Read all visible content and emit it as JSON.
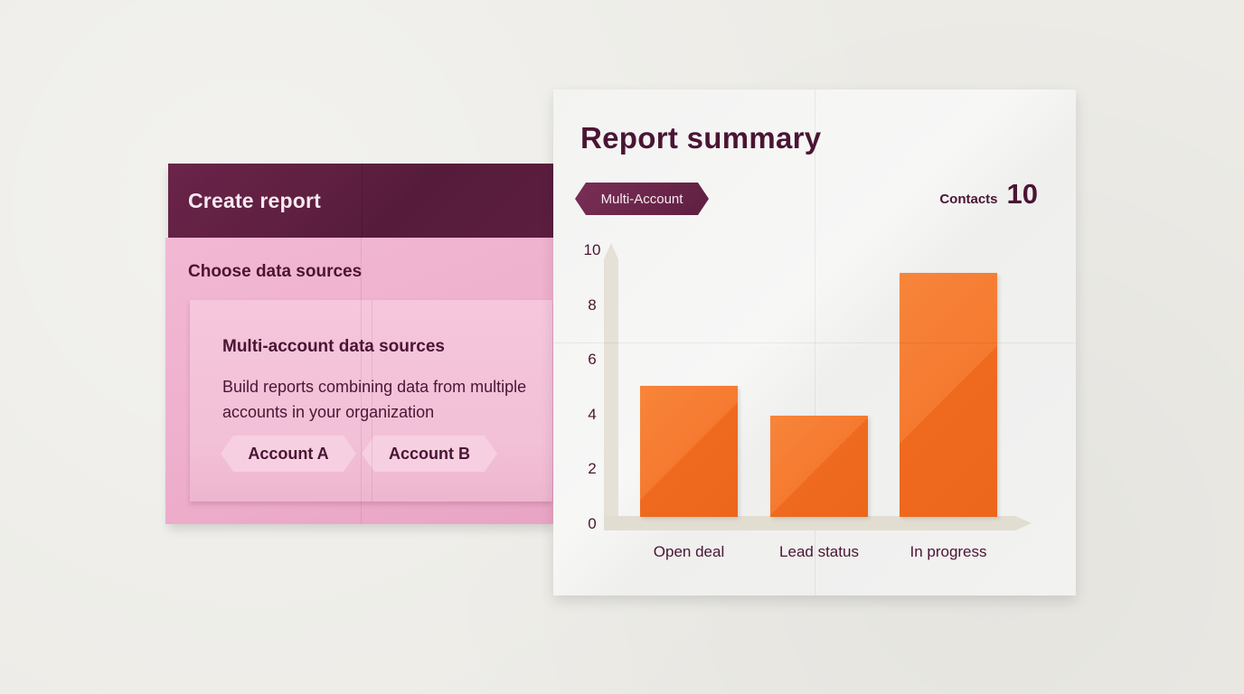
{
  "create_report": {
    "title": "Create report",
    "section_title": "Choose data sources",
    "sources_panel": {
      "title": "Multi-account data sources",
      "description": "Build reports combining data from multiple accounts in your organization",
      "accounts": [
        {
          "label": "Account A"
        },
        {
          "label": "Account B"
        }
      ]
    }
  },
  "report_summary": {
    "title": "Report summary",
    "badge": "Multi-Account",
    "contacts_label": "Contacts",
    "contacts_value": "10"
  },
  "colors": {
    "brand_dark": "#5e1f40",
    "text": "#4a1533",
    "pink": "#f2b8d3",
    "bar": "#f47a2e",
    "background": "#ecebe6"
  },
  "chart_data": {
    "type": "bar",
    "title": "",
    "categories": [
      "Open deal",
      "Lead status",
      "In progress"
    ],
    "values": [
      4.8,
      3.7,
      8.9
    ],
    "xlabel": "",
    "ylabel": "",
    "yticks": [
      "0",
      "2",
      "4",
      "6",
      "8",
      "10"
    ],
    "ylim": [
      0,
      10
    ],
    "grid": false,
    "legend": null
  }
}
